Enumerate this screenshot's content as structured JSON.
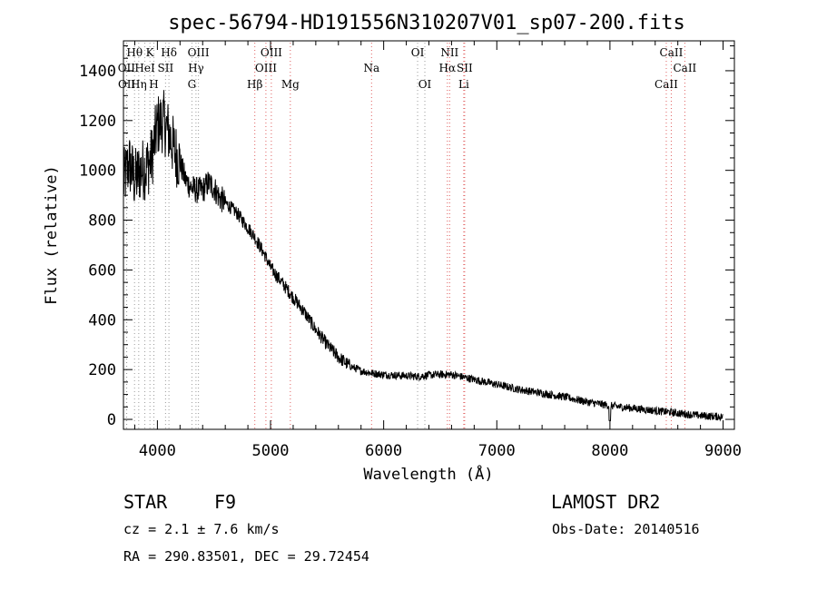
{
  "chart_data": {
    "type": "line",
    "title": "spec-56794-HD191556N310207V01_sp07-200.fits",
    "xlabel": "Wavelength (Å)",
    "ylabel": "Flux (relative)",
    "xlim": [
      3700,
      9100
    ],
    "ylim": [
      -40,
      1520
    ],
    "xticks": [
      4000,
      5000,
      6000,
      7000,
      8000,
      9000
    ],
    "yticks": [
      0,
      200,
      400,
      600,
      800,
      1000,
      1200,
      1400
    ],
    "grid": false,
    "series": [
      {
        "x": [
          3700,
          3750,
          3800,
          3850,
          3900,
          3950,
          4000,
          4050,
          4100,
          4150,
          4200,
          4250,
          4300,
          4350,
          4400,
          4450,
          4500,
          4550,
          4600,
          4650,
          4700,
          4750,
          4800,
          4850,
          4900,
          4950,
          5000,
          5100,
          5200,
          5300,
          5400,
          5500,
          5600,
          5700,
          5800,
          5900,
          6000,
          6100,
          6200,
          6300,
          6400,
          6500,
          6600,
          6700,
          6800,
          6900,
          7000,
          7200,
          7400,
          7600,
          7800,
          8000,
          8200,
          8400,
          8600,
          8800,
          9000
        ],
        "y": [
          950,
          1030,
          960,
          1000,
          1010,
          1050,
          1180,
          1200,
          1150,
          1080,
          1030,
          960,
          930,
          920,
          920,
          950,
          930,
          890,
          870,
          850,
          830,
          800,
          770,
          740,
          700,
          660,
          610,
          550,
          490,
          430,
          360,
          300,
          250,
          215,
          195,
          185,
          180,
          177,
          175,
          172,
          178,
          180,
          180,
          170,
          160,
          150,
          140,
          120,
          105,
          90,
          70,
          55,
          45,
          35,
          25,
          15,
          10
        ]
      }
    ],
    "line_markers": [
      {
        "label": "Hθ",
        "x": 3798,
        "row": 1,
        "color": "#9b9b9b"
      },
      {
        "label": "K",
        "x": 3934,
        "row": 1,
        "color": "#9b9b9b"
      },
      {
        "label": "Hδ",
        "x": 4102,
        "row": 1,
        "color": "#9b9b9b"
      },
      {
        "label": "OIII",
        "x": 4363,
        "row": 1,
        "color": "#9b9b9b"
      },
      {
        "label": "OIII",
        "x": 5007,
        "row": 1,
        "color": "#e06060"
      },
      {
        "label": "OI",
        "x": 6300,
        "row": 1,
        "color": "#9b9b9b"
      },
      {
        "label": "NII",
        "x": 6583,
        "row": 1,
        "color": "#e06060"
      },
      {
        "label": "CaII",
        "x": 8542,
        "row": 1,
        "color": "#e06060"
      },
      {
        "label": "OII",
        "x": 3727,
        "row": 2,
        "color": "#9b9b9b"
      },
      {
        "label": "HeI",
        "x": 3889,
        "row": 2,
        "color": "#9b9b9b"
      },
      {
        "label": "SII",
        "x": 4072,
        "row": 2,
        "color": "#9b9b9b"
      },
      {
        "label": "Hγ",
        "x": 4341,
        "row": 2,
        "color": "#9b9b9b"
      },
      {
        "label": "OIII",
        "x": 4959,
        "row": 2,
        "color": "#e06060"
      },
      {
        "label": "Na",
        "x": 5893,
        "row": 2,
        "color": "#e06060"
      },
      {
        "label": "Hα",
        "x": 6563,
        "row": 2,
        "color": "#e06060"
      },
      {
        "label": "SII",
        "x": 6716,
        "row": 2,
        "color": "#e06060"
      },
      {
        "label": "CaII",
        "x": 8662,
        "row": 2,
        "color": "#e06060"
      },
      {
        "label": "OII",
        "x": 3729,
        "row": 3,
        "color": "#9b9b9b"
      },
      {
        "label": "Hη",
        "x": 3835,
        "row": 3,
        "color": "#9b9b9b"
      },
      {
        "label": "H",
        "x": 3969,
        "row": 3,
        "color": "#9b9b9b"
      },
      {
        "label": "G",
        "x": 4305,
        "row": 3,
        "color": "#9b9b9b"
      },
      {
        "label": "Hβ",
        "x": 4861,
        "row": 3,
        "color": "#e06060"
      },
      {
        "label": "Mg",
        "x": 5175,
        "row": 3,
        "color": "#e06060"
      },
      {
        "label": "OI",
        "x": 6364,
        "row": 3,
        "color": "#9b9b9b"
      },
      {
        "label": "Li",
        "x": 6708,
        "row": 3,
        "color": "#e06060"
      },
      {
        "label": "CaII",
        "x": 8498,
        "row": 3,
        "color": "#e06060"
      }
    ]
  },
  "info": {
    "object_class": "STAR",
    "subclass": "F9",
    "survey": "LAMOST DR2",
    "cz": "cz = 2.1 ± 7.6 km/s",
    "obs_date": "Obs-Date: 20140516",
    "coords": "RA = 290.83501, DEC =  29.72454"
  }
}
